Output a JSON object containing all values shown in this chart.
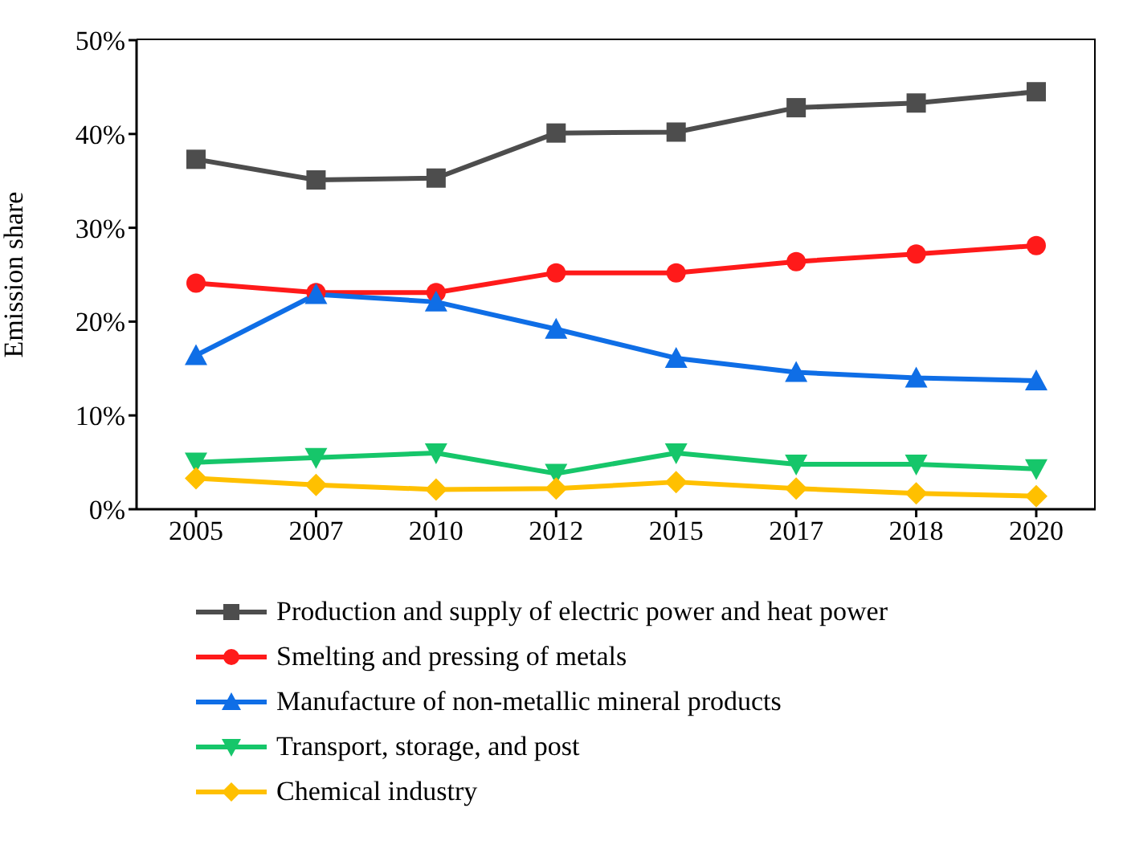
{
  "chart_data": {
    "type": "line",
    "ylabel": "Emission share",
    "categories": [
      "2005",
      "2007",
      "2010",
      "2012",
      "2015",
      "2017",
      "2018",
      "2020"
    ],
    "series": [
      {
        "name": "Production and supply of electric power and heat power",
        "color": "#4d4d4d",
        "marker": "square",
        "values": [
          37.3,
          35.1,
          35.3,
          40.1,
          40.2,
          42.8,
          43.3,
          44.5
        ]
      },
      {
        "name": "Smelting and pressing of metals",
        "color": "#ff1a1a",
        "marker": "circle",
        "values": [
          24.1,
          23.1,
          23.1,
          25.2,
          25.2,
          26.4,
          27.2,
          28.1
        ]
      },
      {
        "name": "Manufacture of non-metallic mineral products",
        "color": "#0f6ee6",
        "marker": "triangle",
        "values": [
          16.4,
          22.9,
          22.1,
          19.2,
          16.1,
          14.6,
          14.0,
          13.7
        ]
      },
      {
        "name": "Transport, storage, and post",
        "color": "#16c66a",
        "marker": "triangle-down",
        "values": [
          5.0,
          5.5,
          6.0,
          3.8,
          6.0,
          4.8,
          4.8,
          4.3
        ]
      },
      {
        "name": "Chemical industry",
        "color": "#ffc000",
        "marker": "diamond",
        "values": [
          3.3,
          2.6,
          2.1,
          2.2,
          2.9,
          2.2,
          1.7,
          1.4
        ]
      }
    ],
    "ylim": [
      0,
      50
    ],
    "yticks": [
      {
        "value": 0,
        "label": "0%"
      },
      {
        "value": 10,
        "label": "10%"
      },
      {
        "value": 20,
        "label": "20%"
      },
      {
        "value": 30,
        "label": "30%"
      },
      {
        "value": 40,
        "label": "40%"
      },
      {
        "value": 50,
        "label": "50%"
      }
    ],
    "legend": "bottom",
    "grid": false,
    "line_style": "solid"
  }
}
